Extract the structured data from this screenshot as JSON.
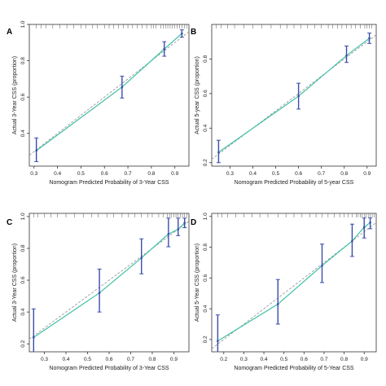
{
  "chart_data": [
    {
      "panel": "A",
      "type": "line",
      "xlabel": "Nomogram Predicted Probability of 3-Year CSS",
      "ylabel": "Actual 3-Year CSS (proportion)",
      "xlim": [
        0.28,
        0.96
      ],
      "ylim": [
        0.22,
        1.0
      ],
      "xticks": [
        0.3,
        0.4,
        0.5,
        0.6,
        0.7,
        0.8,
        0.9
      ],
      "xtick_labels": [
        "0.3",
        "0.4",
        "0.5",
        "0.6",
        "0.7",
        "0.8",
        "0.9"
      ],
      "yticks": [
        0.4,
        0.6,
        0.8,
        1.0
      ],
      "ytick_labels": [
        "0.4",
        "0.6",
        "0.8",
        "1.0"
      ],
      "ideal_line": [
        [
          0.28,
          0.28
        ],
        [
          0.96,
          0.96
        ]
      ],
      "calibration_points": [
        {
          "x": 0.31,
          "y": 0.305,
          "lo": 0.245,
          "hi": 0.375
        },
        {
          "x": 0.675,
          "y": 0.655,
          "lo": 0.595,
          "hi": 0.715
        },
        {
          "x": 0.855,
          "y": 0.865,
          "lo": 0.825,
          "hi": 0.905
        },
        {
          "x": 0.93,
          "y": 0.95,
          "lo": 0.93,
          "hi": 0.97
        }
      ],
      "rug_x": [
        0.31,
        0.33,
        0.35,
        0.38,
        0.41,
        0.44,
        0.47,
        0.5,
        0.52,
        0.55,
        0.57,
        0.6,
        0.62,
        0.64,
        0.66,
        0.68,
        0.7,
        0.72,
        0.74,
        0.76,
        0.78,
        0.8,
        0.81,
        0.82,
        0.84,
        0.85,
        0.86,
        0.87,
        0.88,
        0.89,
        0.9,
        0.91,
        0.92,
        0.93,
        0.94,
        0.95
      ]
    },
    {
      "panel": "B",
      "type": "line",
      "xlabel": "Nomogram Predicted Probability of 5-year CSS",
      "ylabel": "Actual 5-year CSS (proportion)",
      "xlim": [
        0.22,
        0.94
      ],
      "ylim": [
        0.18,
        1.0
      ],
      "xticks": [
        0.3,
        0.4,
        0.5,
        0.6,
        0.7,
        0.8,
        0.9
      ],
      "xtick_labels": [
        "0.3",
        "0.4",
        "0.5",
        "0.6",
        "0.7",
        "0.8",
        "0.9"
      ],
      "yticks": [
        0.2,
        0.4,
        0.6,
        0.8
      ],
      "ytick_labels": [
        "0.2",
        "0.4",
        "0.6",
        "0.8"
      ],
      "ideal_line": [
        [
          0.22,
          0.22
        ],
        [
          0.94,
          0.94
        ]
      ],
      "calibration_points": [
        {
          "x": 0.25,
          "y": 0.26,
          "lo": 0.2,
          "hi": 0.33
        },
        {
          "x": 0.6,
          "y": 0.585,
          "lo": 0.51,
          "hi": 0.66
        },
        {
          "x": 0.81,
          "y": 0.82,
          "lo": 0.78,
          "hi": 0.875
        },
        {
          "x": 0.91,
          "y": 0.92,
          "lo": 0.89,
          "hi": 0.95
        }
      ],
      "rug_x": [
        0.24,
        0.26,
        0.29,
        0.32,
        0.36,
        0.4,
        0.44,
        0.48,
        0.52,
        0.55,
        0.58,
        0.61,
        0.64,
        0.67,
        0.7,
        0.73,
        0.75,
        0.77,
        0.79,
        0.81,
        0.83,
        0.85,
        0.87,
        0.89,
        0.9,
        0.91,
        0.92
      ]
    },
    {
      "panel": "C",
      "type": "line",
      "xlabel": "Nomogram Predicted Probability of 3-Year CSS",
      "ylabel": "Actual 3-Year CSS (proportion)",
      "xlim": [
        0.23,
        0.97
      ],
      "ylim": [
        0.15,
        1.02
      ],
      "xticks": [
        0.3,
        0.4,
        0.5,
        0.6,
        0.7,
        0.8,
        0.9
      ],
      "xtick_labels": [
        "0.3",
        "0.4",
        "0.5",
        "0.6",
        "0.7",
        "0.8",
        "0.9"
      ],
      "yticks": [
        0.2,
        0.4,
        0.6,
        0.8,
        1.0
      ],
      "ytick_labels": [
        "0.2",
        "0.4",
        "0.6",
        "0.8",
        "1.0"
      ],
      "ideal_line": [
        [
          0.23,
          0.23
        ],
        [
          0.97,
          0.97
        ]
      ],
      "calibration_points": [
        {
          "x": 0.25,
          "y": 0.24,
          "lo": 0.13,
          "hi": 0.42
        },
        {
          "x": 0.555,
          "y": 0.52,
          "lo": 0.4,
          "hi": 0.67
        },
        {
          "x": 0.75,
          "y": 0.74,
          "lo": 0.64,
          "hi": 0.86
        },
        {
          "x": 0.875,
          "y": 0.89,
          "lo": 0.81,
          "hi": 0.99
        },
        {
          "x": 0.92,
          "y": 0.92,
          "lo": 0.88,
          "hi": 0.99
        },
        {
          "x": 0.95,
          "y": 0.96,
          "lo": 0.93,
          "hi": 0.99
        }
      ],
      "rug_x": [
        0.25,
        0.27,
        0.3,
        0.33,
        0.36,
        0.4,
        0.44,
        0.48,
        0.52,
        0.55,
        0.59,
        0.62,
        0.66,
        0.69,
        0.72,
        0.75,
        0.78,
        0.8,
        0.83,
        0.85,
        0.87,
        0.88,
        0.89,
        0.9,
        0.91,
        0.92,
        0.93,
        0.94,
        0.95,
        0.96
      ]
    },
    {
      "panel": "D",
      "type": "line",
      "xlabel": "Nomogram Predicted Probability of 5-Year CSS",
      "ylabel": "Actual 5-Year CSS (proportion)",
      "xlim": [
        0.14,
        0.96
      ],
      "ylim": [
        0.12,
        1.02
      ],
      "xticks": [
        0.2,
        0.3,
        0.4,
        0.5,
        0.6,
        0.7,
        0.8,
        0.9
      ],
      "xtick_labels": [
        "0.2",
        "0.3",
        "0.4",
        "0.5",
        "0.6",
        "0.7",
        "0.8",
        "0.9"
      ],
      "yticks": [
        0.2,
        0.4,
        0.6,
        0.8,
        1.0
      ],
      "ytick_labels": [
        "0.2",
        "0.4",
        "0.6",
        "0.8",
        "1.0"
      ],
      "ideal_line": [
        [
          0.14,
          0.14
        ],
        [
          0.96,
          0.96
        ]
      ],
      "calibration_points": [
        {
          "x": 0.17,
          "y": 0.19,
          "lo": 0.1,
          "hi": 0.36
        },
        {
          "x": 0.47,
          "y": 0.43,
          "lo": 0.3,
          "hi": 0.59
        },
        {
          "x": 0.69,
          "y": 0.68,
          "lo": 0.57,
          "hi": 0.82
        },
        {
          "x": 0.84,
          "y": 0.84,
          "lo": 0.74,
          "hi": 0.95
        },
        {
          "x": 0.9,
          "y": 0.93,
          "lo": 0.86,
          "hi": 0.99
        },
        {
          "x": 0.93,
          "y": 0.96,
          "lo": 0.92,
          "hi": 0.99
        }
      ],
      "rug_x": [
        0.17,
        0.19,
        0.22,
        0.26,
        0.3,
        0.34,
        0.38,
        0.42,
        0.47,
        0.51,
        0.55,
        0.59,
        0.63,
        0.66,
        0.69,
        0.72,
        0.75,
        0.78,
        0.8,
        0.82,
        0.84,
        0.86,
        0.87,
        0.88,
        0.89,
        0.9,
        0.91,
        0.92,
        0.93,
        0.94,
        0.95
      ]
    }
  ],
  "colors": {
    "calibration_curve": "#3fbfa6",
    "error_bar": "#3a4dab",
    "ideal_line": "#9a9a9a",
    "axis": "#333333"
  }
}
